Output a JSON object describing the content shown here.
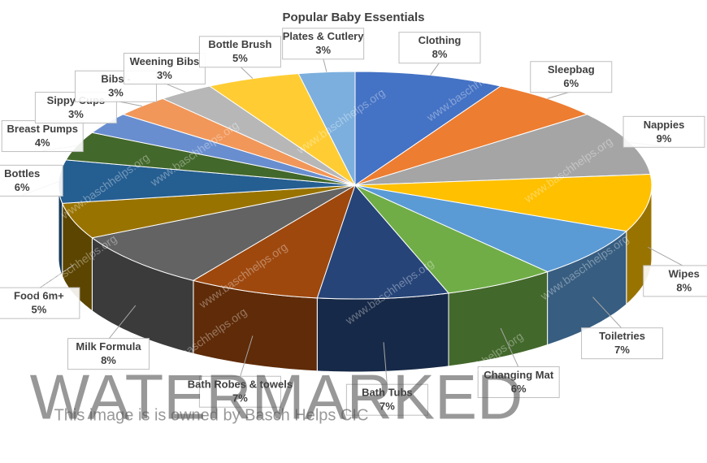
{
  "chart_data": {
    "type": "pie",
    "title": "Popular Baby Essentials",
    "categories": [
      "Clothing",
      "Sleepbag",
      "Nappies",
      "Wipes",
      "Toiletries",
      "Changing Mat",
      "Bath Tubs",
      "Bath Robes & towels",
      "Milk Formula",
      "Food 6m+",
      "Bottles",
      "Breast Pumps",
      "Sippy Cups",
      "Bibs -",
      "Weening Bibs",
      "Bottle Brush",
      "Plates & Cutlery"
    ],
    "values": [
      8,
      6,
      9,
      8,
      7,
      6,
      7,
      7,
      8,
      5,
      6,
      4,
      3,
      3,
      3,
      5,
      3
    ],
    "value_labels": [
      "8%",
      "6%",
      "9%",
      "8%",
      "7%",
      "6%",
      "7%",
      "7%",
      "8%",
      "5%",
      "6%",
      "4%",
      "3%",
      "3%",
      "3%",
      "5%",
      "3%"
    ],
    "colors": [
      "#4472c4",
      "#ed7d31",
      "#a5a5a5",
      "#ffc000",
      "#5b9bd5",
      "#70ad47",
      "#264478",
      "#9e480e",
      "#636363",
      "#997300",
      "#255e91",
      "#43682b",
      "#698ed0",
      "#f1975a",
      "#b7b7b7",
      "#ffcd33",
      "#7cafdd"
    ]
  },
  "watermark": {
    "title": "WATERMARKED",
    "caption": "This image is is owned by Basch Helps CIC",
    "url": "www.baschhelps.org"
  }
}
